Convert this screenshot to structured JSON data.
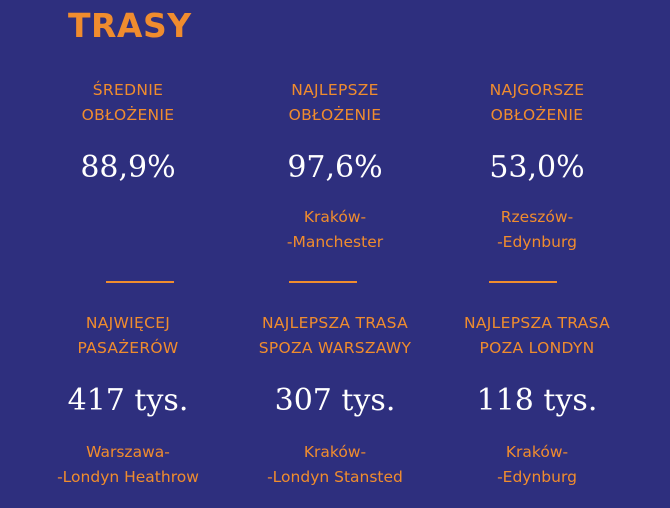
{
  "title": "TRASY",
  "stats": [
    {
      "label1": "ŚREDNIE",
      "label2": "OBŁOŻENIE",
      "value": "88,9%",
      "sub1": "",
      "sub2": ""
    },
    {
      "label1": "NAJLEPSZE",
      "label2": "OBŁOŻENIE",
      "value": "97,6%",
      "sub1": "Kraków-",
      "sub2": "-Manchester"
    },
    {
      "label1": "NAJGORSZE",
      "label2": "OBŁOŻENIE",
      "value": "53,0%",
      "sub1": "Rzeszów-",
      "sub2": "-Edynburg"
    },
    {
      "label1": "NAJWIĘCEJ",
      "label2": "PASAŻERÓW",
      "value": "417 tys.",
      "sub1": "Warszawa-",
      "sub2": "-Londyn Heathrow"
    },
    {
      "label1": "NAJLEPSZA TRASA",
      "label2": "SPOZA WARSZAWY",
      "value": "307 tys.",
      "sub1": "Kraków-",
      "sub2": "-Londyn Stansted"
    },
    {
      "label1": "NAJLEPSZA TRASA",
      "label2": "POZA LONDYN",
      "value": "118 tys.",
      "sub1": "Kraków-",
      "sub2": "-Edynburg"
    }
  ]
}
